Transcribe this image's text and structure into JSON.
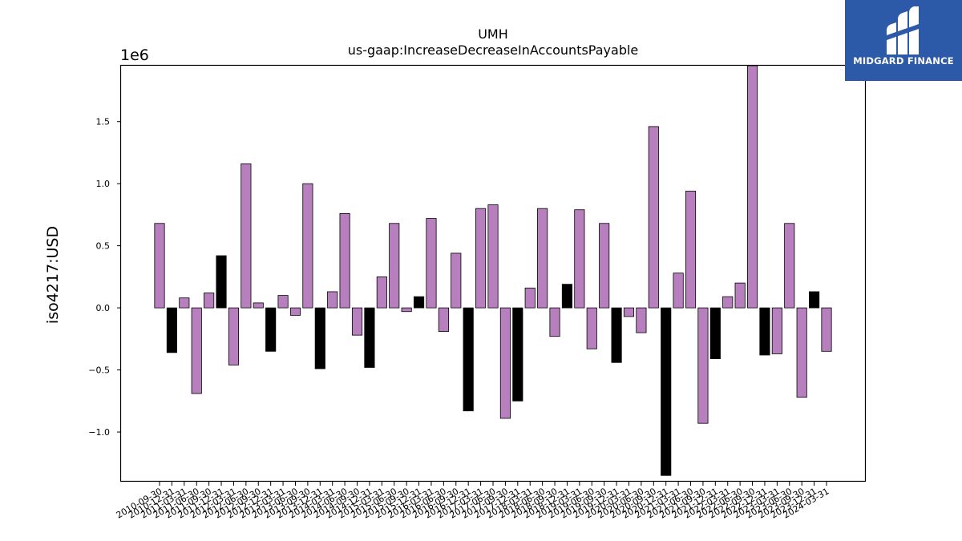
{
  "chart_data": {
    "type": "bar",
    "title": "UMH",
    "subtitle": "us-gaap:IncreaseDecreaseInAccountsPayable",
    "xlabel": "",
    "ylabel": "iso4217:USD",
    "y_scale_label": "1e6",
    "ylim": [
      -1400000,
      1950000
    ],
    "yticks": [
      -1000000,
      -500000,
      0,
      500000,
      1000000,
      1500000
    ],
    "ytick_labels": [
      "−1.0",
      "−0.5",
      "0.0",
      "0.5",
      "1.0",
      "1.5"
    ],
    "grid": false,
    "colors": {
      "primary": "#b77fbd",
      "highlight": "#000000",
      "edge": "#000000"
    },
    "categories": [
      "2010-09-30",
      "2010-12-31",
      "2011-03-31",
      "2011-06-30",
      "2011-09-30",
      "2011-12-31",
      "2012-03-31",
      "2012-06-30",
      "2012-09-30",
      "2012-12-31",
      "2013-03-31",
      "2013-06-30",
      "2013-09-30",
      "2013-12-31",
      "2014-03-31",
      "2014-06-30",
      "2014-09-30",
      "2014-12-31",
      "2015-03-31",
      "2015-06-30",
      "2015-09-30",
      "2015-12-31",
      "2016-03-31",
      "2016-06-30",
      "2016-09-30",
      "2016-12-31",
      "2017-03-31",
      "2017-06-30",
      "2017-09-30",
      "2017-12-31",
      "2018-03-31",
      "2018-06-30",
      "2018-09-30",
      "2018-12-31",
      "2019-03-31",
      "2019-06-30",
      "2019-09-30",
      "2019-12-31",
      "2020-03-31",
      "2020-06-30",
      "2020-09-30",
      "2020-12-31",
      "2021-03-31",
      "2021-06-30",
      "2021-09-30",
      "2021-12-31",
      "2022-03-31",
      "2022-06-30",
      "2022-09-30",
      "2022-12-31",
      "2023-03-31",
      "2023-06-30",
      "2023-09-30",
      "2023-12-31",
      "2024-03-31"
    ],
    "tick_labels": [
      "2010-09-30",
      "2010-12-31",
      "2011-03-31",
      "2011-06-30",
      "2011-09-30",
      "2011-12-31",
      "2012-03-31",
      "2012-06-30",
      "2012-09-30",
      "2012-12-31",
      "2013-03-31",
      "2013-06-30",
      "2013-09-30",
      "2013-12-31",
      "2014-03-31",
      "2014-06-30",
      "2014-09-30",
      "2014-12-31",
      "2015-03-31",
      "2015-06-30",
      "2015-09-30",
      "2015-12-31",
      "2016-03-31",
      "2016-06-30",
      "2016-09-30",
      "2016-12-31",
      "2017-03-31",
      "2017-06-30",
      "2017-09-30",
      "2017-12-31",
      "2018-03-31",
      "2018-06-30",
      "2018-09-30",
      "2018-12-31",
      "2019-03-31",
      "2019-06-30",
      "2019-09-30",
      "2019-12-31",
      "2020-03-31",
      "2020-06-30",
      "2020-09-30",
      "2020-12-31",
      "2021-03-31",
      "2021-06-30",
      "2021-09-30",
      "2021-12-31",
      "2022-03-31",
      "2022-06-30",
      "2022-09-30",
      "2022-12-31",
      "2023-03-31",
      "2023-06-30",
      "2023-09-30",
      "2023-12-31",
      "2024-03-31"
    ],
    "values": [
      680000,
      -360000,
      80000,
      -690000,
      120000,
      420000,
      -460000,
      1160000,
      40000,
      -350000,
      100000,
      -60000,
      1000000,
      -490000,
      130000,
      760000,
      -220000,
      -480000,
      250000,
      680000,
      -30000,
      90000,
      720000,
      -190000,
      440000,
      -830000,
      800000,
      830000,
      -890000,
      -750000,
      160000,
      800000,
      -230000,
      190000,
      790000,
      -330000,
      680000,
      -440000,
      -70000,
      -200000,
      1460000,
      -1350000,
      280000,
      940000,
      -930000,
      -410000,
      90000,
      200000,
      1950000,
      -380000,
      -370000,
      680000,
      -720000,
      130000,
      -350000
    ],
    "highlighted": [
      false,
      true,
      false,
      false,
      false,
      true,
      false,
      false,
      false,
      true,
      false,
      false,
      false,
      true,
      false,
      false,
      false,
      true,
      false,
      false,
      false,
      true,
      false,
      false,
      false,
      true,
      false,
      false,
      false,
      true,
      false,
      false,
      false,
      true,
      false,
      false,
      false,
      true,
      false,
      false,
      false,
      true,
      false,
      false,
      false,
      true,
      false,
      false,
      false,
      true,
      false,
      false,
      false,
      true,
      false
    ]
  },
  "logo": {
    "text": "MIDGARD FINANCE",
    "color": "#2d5aa8",
    "name": "midgard-logo-icon"
  }
}
